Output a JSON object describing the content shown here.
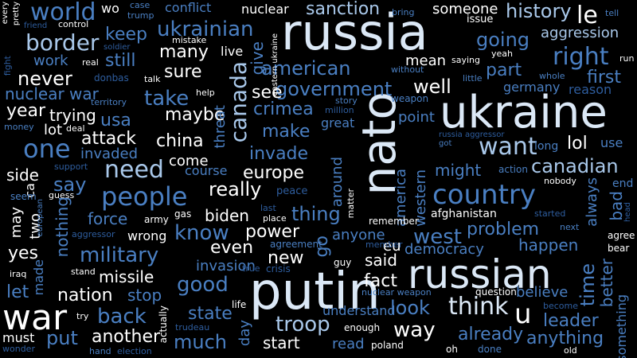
{
  "palette": {
    "background": "#000000",
    "white": "#ffffff",
    "pale": "#dbe8f6",
    "light": "#a9c8ea",
    "mid": "#6f9fd6",
    "blue": "#4a7fc2",
    "deep": "#2e5d9e",
    "navy": "#1f4f8f"
  },
  "words": [
    {
      "text": "russia",
      "color": "pale"
    },
    {
      "text": "ukraine",
      "color": "pale"
    },
    {
      "text": "putin",
      "color": "pale"
    },
    {
      "text": "russian",
      "color": "pale"
    },
    {
      "text": "nato",
      "color": "pale"
    },
    {
      "text": "country",
      "color": "blue"
    },
    {
      "text": "war",
      "color": "white"
    },
    {
      "text": "people",
      "color": "blue"
    },
    {
      "text": "ukrainian",
      "color": "blue"
    },
    {
      "text": "canada",
      "color": "light"
    },
    {
      "text": "think",
      "color": "pale"
    },
    {
      "text": "one",
      "color": "blue"
    },
    {
      "text": "world",
      "color": "blue"
    },
    {
      "text": "border",
      "color": "light"
    },
    {
      "text": "need",
      "color": "light"
    },
    {
      "text": "want",
      "color": "light"
    },
    {
      "text": "right",
      "color": "blue"
    },
    {
      "text": "going",
      "color": "blue"
    },
    {
      "text": "sanction",
      "color": "light"
    },
    {
      "text": "history",
      "color": "light"
    },
    {
      "text": "le",
      "color": "white"
    },
    {
      "text": "know",
      "color": "blue"
    },
    {
      "text": "military",
      "color": "blue"
    },
    {
      "text": "good",
      "color": "blue"
    },
    {
      "text": "back",
      "color": "blue"
    },
    {
      "text": "troop",
      "color": "light"
    },
    {
      "text": "west",
      "color": "blue"
    },
    {
      "text": "problem",
      "color": "blue"
    },
    {
      "text": "american",
      "color": "blue"
    },
    {
      "text": "government",
      "color": "blue"
    },
    {
      "text": "canadian",
      "color": "light"
    },
    {
      "text": "many",
      "color": "white"
    },
    {
      "text": "sure",
      "color": "white"
    },
    {
      "text": "never",
      "color": "white"
    },
    {
      "text": "still",
      "color": "blue"
    },
    {
      "text": "keep",
      "color": "blue"
    },
    {
      "text": "work",
      "color": "blue"
    },
    {
      "text": "nuclear war",
      "color": "blue"
    },
    {
      "text": "year",
      "color": "white"
    },
    {
      "text": "trying",
      "color": "white"
    },
    {
      "text": "usa",
      "color": "blue"
    },
    {
      "text": "lot",
      "color": "white"
    },
    {
      "text": "attack",
      "color": "white"
    },
    {
      "text": "invaded",
      "color": "blue"
    },
    {
      "text": "take",
      "color": "blue"
    },
    {
      "text": "maybe",
      "color": "white"
    },
    {
      "text": "china",
      "color": "white"
    },
    {
      "text": "see",
      "color": "white"
    },
    {
      "text": "crimea",
      "color": "blue"
    },
    {
      "text": "make",
      "color": "blue"
    },
    {
      "text": "invade",
      "color": "blue"
    },
    {
      "text": "europe",
      "color": "white"
    },
    {
      "text": "well",
      "color": "white"
    },
    {
      "text": "part",
      "color": "blue"
    },
    {
      "text": "first",
      "color": "blue"
    },
    {
      "text": "mean",
      "color": "white"
    },
    {
      "text": "aggression",
      "color": "light"
    },
    {
      "text": "side",
      "color": "white"
    },
    {
      "text": "say",
      "color": "blue"
    },
    {
      "text": "really",
      "color": "white"
    },
    {
      "text": "come",
      "color": "white"
    },
    {
      "text": "course",
      "color": "blue"
    },
    {
      "text": "might",
      "color": "blue"
    },
    {
      "text": "lol",
      "color": "white"
    },
    {
      "text": "force",
      "color": "blue"
    },
    {
      "text": "biden",
      "color": "white"
    },
    {
      "text": "thing",
      "color": "blue"
    },
    {
      "text": "power",
      "color": "white"
    },
    {
      "text": "even",
      "color": "white"
    },
    {
      "text": "said",
      "color": "white"
    },
    {
      "text": "new",
      "color": "white"
    },
    {
      "text": "missile",
      "color": "white"
    },
    {
      "text": "nation",
      "color": "white"
    },
    {
      "text": "stop",
      "color": "blue"
    },
    {
      "text": "invasion",
      "color": "blue"
    },
    {
      "text": "fact",
      "color": "white"
    },
    {
      "text": "let",
      "color": "blue"
    },
    {
      "text": "yes",
      "color": "white"
    },
    {
      "text": "state",
      "color": "blue"
    },
    {
      "text": "put",
      "color": "blue"
    },
    {
      "text": "another",
      "color": "white"
    },
    {
      "text": "much",
      "color": "blue"
    },
    {
      "text": "start",
      "color": "white"
    },
    {
      "text": "read",
      "color": "blue"
    },
    {
      "text": "way",
      "color": "white"
    },
    {
      "text": "look",
      "color": "blue"
    },
    {
      "text": "already",
      "color": "blue"
    },
    {
      "text": "anything",
      "color": "blue"
    },
    {
      "text": "leader",
      "color": "blue"
    },
    {
      "text": "happen",
      "color": "blue"
    },
    {
      "text": "believe",
      "color": "blue"
    },
    {
      "text": "democracy",
      "color": "blue"
    },
    {
      "text": "anyone",
      "color": "blue"
    },
    {
      "text": "must",
      "color": "white"
    },
    {
      "text": "afghanistan",
      "color": "white"
    },
    {
      "text": "eu",
      "color": "white"
    },
    {
      "text": "point",
      "color": "blue"
    },
    {
      "text": "great",
      "color": "blue"
    },
    {
      "text": "understand",
      "color": "blue"
    },
    {
      "text": "wrong",
      "color": "white"
    },
    {
      "text": "u",
      "color": "white"
    },
    {
      "text": "live",
      "color": "white"
    },
    {
      "text": "nuclear",
      "color": "white"
    },
    {
      "text": "conflict",
      "color": "blue"
    },
    {
      "text": "someone",
      "color": "white"
    },
    {
      "text": "wo",
      "color": "white"
    },
    {
      "text": "control",
      "color": "white"
    },
    {
      "text": "issue",
      "color": "white"
    },
    {
      "text": "time",
      "color": "blue"
    },
    {
      "text": "always",
      "color": "blue"
    },
    {
      "text": "bad",
      "color": "blue"
    },
    {
      "text": "better",
      "color": "blue"
    },
    {
      "text": "something",
      "color": "blue"
    },
    {
      "text": "western",
      "color": "blue"
    },
    {
      "text": "america",
      "color": "blue"
    },
    {
      "text": "around",
      "color": "blue"
    },
    {
      "text": "go",
      "color": "blue"
    },
    {
      "text": "give",
      "color": "blue"
    },
    {
      "text": "threat",
      "color": "blue"
    },
    {
      "text": "nothing",
      "color": "blue"
    },
    {
      "text": "two",
      "color": "white"
    },
    {
      "text": "may",
      "color": "white"
    },
    {
      "text": "made",
      "color": "blue"
    },
    {
      "text": "ca",
      "color": "white"
    },
    {
      "text": "day",
      "color": "blue"
    },
    {
      "text": "use",
      "color": "blue"
    },
    {
      "text": "long",
      "color": "blue"
    },
    {
      "text": "end",
      "color": "blue"
    },
    {
      "text": "agree",
      "color": "white"
    },
    {
      "text": "bear",
      "color": "white"
    },
    {
      "text": "next",
      "color": "blue"
    },
    {
      "text": "germany",
      "color": "blue"
    },
    {
      "text": "reason",
      "color": "deep"
    },
    {
      "text": "whole",
      "color": "blue"
    },
    {
      "text": "action",
      "color": "blue"
    },
    {
      "text": "nobody",
      "color": "white"
    },
    {
      "text": "started",
      "color": "deep"
    },
    {
      "text": "member",
      "color": "deep"
    },
    {
      "text": "remember",
      "color": "white"
    },
    {
      "text": "agreement",
      "color": "blue"
    },
    {
      "text": "crisis",
      "color": "deep"
    },
    {
      "text": "true",
      "color": "deep"
    },
    {
      "text": "guy",
      "color": "white"
    },
    {
      "text": "question",
      "color": "white"
    },
    {
      "text": "become",
      "color": "deep"
    },
    {
      "text": "done",
      "color": "blue"
    },
    {
      "text": "old",
      "color": "white"
    },
    {
      "text": "oh",
      "color": "white"
    },
    {
      "text": "poland",
      "color": "white"
    },
    {
      "text": "enough",
      "color": "white"
    },
    {
      "text": "nuclear weapon",
      "color": "blue"
    },
    {
      "text": "life",
      "color": "white"
    },
    {
      "text": "try",
      "color": "white"
    },
    {
      "text": "trudeau",
      "color": "deep"
    },
    {
      "text": "actually",
      "color": "white"
    },
    {
      "text": "election",
      "color": "deep"
    },
    {
      "text": "hand",
      "color": "blue"
    },
    {
      "text": "wonder",
      "color": "deep"
    },
    {
      "text": "stand",
      "color": "white"
    },
    {
      "text": "iraq",
      "color": "white"
    },
    {
      "text": "aggressor",
      "color": "deep"
    },
    {
      "text": "european",
      "color": "blue"
    },
    {
      "text": "army",
      "color": "white"
    },
    {
      "text": "gas",
      "color": "white"
    },
    {
      "text": "last",
      "color": "deep"
    },
    {
      "text": "place",
      "color": "white"
    },
    {
      "text": "matter",
      "color": "white"
    },
    {
      "text": "peace",
      "color": "deep"
    },
    {
      "text": "guess",
      "color": "white"
    },
    {
      "text": "seem",
      "color": "blue"
    },
    {
      "text": "support",
      "color": "deep"
    },
    {
      "text": "money",
      "color": "blue"
    },
    {
      "text": "deal",
      "color": "white"
    },
    {
      "text": "territory",
      "color": "blue"
    },
    {
      "text": "help",
      "color": "white"
    },
    {
      "text": "story",
      "color": "blue"
    },
    {
      "text": "million",
      "color": "deep"
    },
    {
      "text": "weapon",
      "color": "blue"
    },
    {
      "text": "without",
      "color": "blue"
    },
    {
      "text": "saying",
      "color": "white"
    },
    {
      "text": "little",
      "color": "blue"
    },
    {
      "text": "russia aggressor",
      "color": "deep"
    },
    {
      "text": "got",
      "color": "blue"
    },
    {
      "text": "yeah",
      "color": "white"
    },
    {
      "text": "run",
      "color": "white"
    },
    {
      "text": "head",
      "color": "deep"
    },
    {
      "text": "tell",
      "color": "blue"
    },
    {
      "text": "bring",
      "color": "blue"
    },
    {
      "text": "case",
      "color": "blue"
    },
    {
      "text": "trump",
      "color": "blue"
    },
    {
      "text": "mistake",
      "color": "white"
    },
    {
      "text": "eastern ukraine",
      "color": "white"
    },
    {
      "text": "donbas",
      "color": "deep"
    },
    {
      "text": "talk",
      "color": "white"
    },
    {
      "text": "soldier",
      "color": "deep"
    },
    {
      "text": "real",
      "color": "white"
    },
    {
      "text": "friend",
      "color": "deep"
    },
    {
      "text": "every",
      "color": "white"
    },
    {
      "text": "pretty",
      "color": "white"
    },
    {
      "text": "fight",
      "color": "deep"
    }
  ]
}
